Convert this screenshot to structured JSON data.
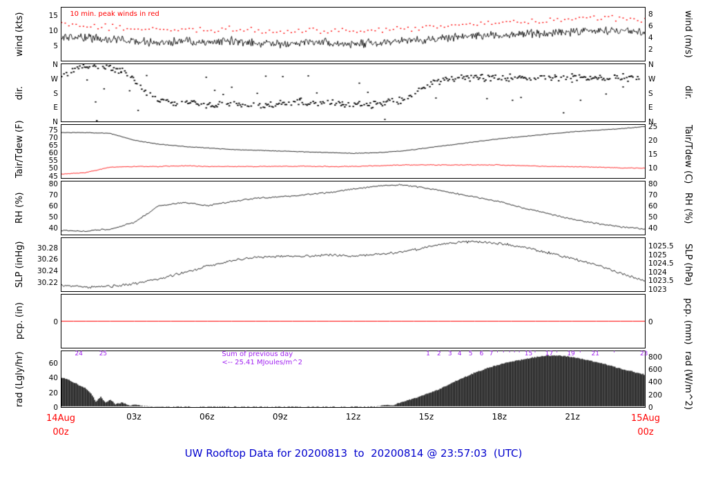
{
  "title": "UW Rooftop Data for 20200813  to  20200814 @ 23:57:03  (UTC)",
  "colors": {
    "title": "#0000cd",
    "date_red": "#ff0000",
    "purple": "#a020f0",
    "black": "#000000",
    "red": "#ff0000"
  },
  "x_axis": {
    "ticks": [
      {
        "h": 3,
        "label": "03z"
      },
      {
        "h": 6,
        "label": "06z"
      },
      {
        "h": 9,
        "label": "09z"
      },
      {
        "h": 12,
        "label": "12z"
      },
      {
        "h": 15,
        "label": "15z"
      },
      {
        "h": 18,
        "label": "18z"
      },
      {
        "h": 21,
        "label": "21z"
      }
    ],
    "start": {
      "line1": "14Aug",
      "line2": "00z"
    },
    "end": {
      "line1": "15Aug",
      "line2": "00z"
    }
  },
  "chart_data": [
    {
      "id": "wind",
      "type": "line",
      "left_label": "wind (kts)",
      "right_label": "wind (m/s)",
      "ylim": [
        0,
        17.5
      ],
      "left_ticks": [
        {
          "v": 5,
          "label": "5"
        },
        {
          "v": 10,
          "label": "10"
        },
        {
          "v": 15,
          "label": "15"
        }
      ],
      "right_ticks": [
        {
          "v": 3.89,
          "label": "2"
        },
        {
          "v": 7.78,
          "label": "4"
        },
        {
          "v": 11.66,
          "label": "6"
        },
        {
          "v": 15.55,
          "label": "8"
        }
      ],
      "annotation_color": "#ff0000",
      "series": [
        {
          "name": "wind-speed",
          "style": "line",
          "color": "#000000",
          "width": 0.9,
          "step_min": 2,
          "noise": 1.6,
          "seed": 11,
          "h": [
            0,
            1,
            2,
            3,
            4,
            5,
            6,
            7,
            8,
            9,
            10,
            11,
            12,
            13,
            14,
            15,
            16,
            17,
            18,
            19,
            20,
            21,
            22,
            23,
            24
          ],
          "v": [
            8,
            7.5,
            7,
            6.5,
            6,
            6.5,
            6,
            6.5,
            6,
            5.5,
            6,
            6,
            5.5,
            6,
            6.5,
            7,
            7.5,
            8,
            8.5,
            9,
            9,
            9.5,
            10,
            10,
            9.5
          ]
        },
        {
          "name": "wind-10min-peak",
          "style": "dots",
          "color": "#ff0000",
          "size": 1.7,
          "step_min": 9,
          "noise": 1.3,
          "seed": 12,
          "h": [
            0,
            1,
            2,
            3,
            4,
            5,
            6,
            7,
            8,
            9,
            10,
            11,
            12,
            13,
            14,
            15,
            16,
            17,
            18,
            19,
            20,
            21,
            22,
            23,
            24
          ],
          "v": [
            12,
            11.5,
            11,
            10.5,
            10,
            10.5,
            10,
            10.5,
            10,
            9.5,
            10,
            10,
            9.5,
            10,
            10.5,
            11,
            11.5,
            12,
            12.5,
            13,
            13,
            13.5,
            14,
            14,
            13.5
          ]
        }
      ],
      "annotations": [
        {
          "text": "10 min. peak winds in red",
          "h": 0.35,
          "v": 15.4,
          "size": 10,
          "color": "#ff0000"
        }
      ]
    },
    {
      "id": "dir",
      "type": "scatter",
      "left_label": "dir.",
      "right_label": "dir.",
      "ylim": [
        0,
        360
      ],
      "left_ticks": [
        {
          "v": 360,
          "label": "N"
        },
        {
          "v": 270,
          "label": "W"
        },
        {
          "v": 180,
          "label": "S"
        },
        {
          "v": 90,
          "label": "E"
        },
        {
          "v": 0,
          "label": "N"
        }
      ],
      "right_ticks": [
        {
          "v": 360,
          "label": "N"
        },
        {
          "v": 270,
          "label": "W"
        },
        {
          "v": 180,
          "label": "S"
        },
        {
          "v": 90,
          "label": "E"
        },
        {
          "v": 0,
          "label": "N"
        }
      ],
      "series": [
        {
          "name": "wind-direction",
          "style": "scatter",
          "color": "#000000",
          "size": 2.2,
          "step_min": 3,
          "noise": 28,
          "dropout": 0.25,
          "wrap": 360,
          "seed": 21,
          "h": [
            0,
            0.5,
            1,
            1.5,
            2,
            2.5,
            3,
            3.5,
            4,
            5,
            6,
            7,
            8,
            9,
            10,
            11,
            12,
            13,
            14,
            14.5,
            15,
            15.5,
            16,
            16.5,
            17,
            18,
            19,
            20,
            21,
            22,
            23,
            24
          ],
          "v": [
            300,
            325,
            340,
            345,
            335,
            310,
            260,
            170,
            125,
            115,
            105,
            110,
            100,
            110,
            120,
            115,
            100,
            110,
            130,
            170,
            220,
            250,
            265,
            270,
            272,
            276,
            280,
            272,
            276,
            270,
            274,
            272
          ]
        },
        {
          "name": "direction-outliers",
          "style": "scatter",
          "color": "#000000",
          "size": 2.0,
          "step_min": 21,
          "noise": 175,
          "dropout": 0.55,
          "wrap": 360,
          "seed": 22,
          "h": [
            0,
            24
          ],
          "v": [
            180,
            180
          ]
        }
      ],
      "annotations": []
    },
    {
      "id": "tair",
      "type": "line",
      "left_label": "Tair/Tdew (F)",
      "right_label": "Tair/Tdew (C)",
      "ylim": [
        43.5,
        78
      ],
      "left_ticks": [
        {
          "v": 45,
          "label": "45"
        },
        {
          "v": 50,
          "label": "50"
        },
        {
          "v": 55,
          "label": "55"
        },
        {
          "v": 60,
          "label": "60"
        },
        {
          "v": 65,
          "label": "65"
        },
        {
          "v": 70,
          "label": "70"
        },
        {
          "v": 75,
          "label": "75"
        }
      ],
      "right_ticks": [
        {
          "v": 50,
          "label": "10"
        },
        {
          "v": 59,
          "label": "15"
        },
        {
          "v": 68,
          "label": "20"
        },
        {
          "v": 77,
          "label": "25"
        }
      ],
      "series": [
        {
          "name": "air-temperature",
          "style": "line",
          "color": "#000000",
          "width": 0.9,
          "step_min": 3,
          "noise": 0.25,
          "seed": 31,
          "h": [
            0,
            1,
            2,
            3,
            4,
            5,
            6,
            7,
            8,
            9,
            10,
            11,
            12,
            13,
            14,
            15,
            16,
            17,
            18,
            19,
            20,
            21,
            22,
            23,
            24
          ],
          "v": [
            73,
            73,
            72.5,
            68,
            65.5,
            64,
            63,
            62,
            61.5,
            61,
            60.5,
            60,
            59.5,
            60,
            61,
            63,
            65,
            67,
            69,
            70.5,
            72,
            73.5,
            74.5,
            75.5,
            77
          ]
        },
        {
          "name": "dew-point",
          "style": "line",
          "color": "#ff0000",
          "width": 0.9,
          "step_min": 3,
          "noise": 0.3,
          "seed": 32,
          "h": [
            0,
            1,
            2,
            3,
            4,
            5,
            6,
            7,
            8,
            9,
            10,
            11,
            12,
            13,
            14,
            15,
            16,
            17,
            18,
            19,
            20,
            21,
            22,
            23,
            24
          ],
          "v": [
            46,
            47,
            50.5,
            51,
            51,
            51.5,
            51,
            51,
            51,
            51,
            51.2,
            51,
            51,
            51.5,
            52,
            52,
            52,
            52,
            52,
            51.5,
            51,
            51,
            50.5,
            50,
            50
          ]
        }
      ],
      "annotations": []
    },
    {
      "id": "rh",
      "type": "line",
      "left_label": "RH (%)",
      "right_label": "RH (%)",
      "ylim": [
        34,
        82
      ],
      "left_ticks": [
        {
          "v": 40,
          "label": "40"
        },
        {
          "v": 50,
          "label": "50"
        },
        {
          "v": 60,
          "label": "60"
        },
        {
          "v": 70,
          "label": "70"
        },
        {
          "v": 80,
          "label": "80"
        }
      ],
      "right_ticks": [
        {
          "v": 40,
          "label": "40"
        },
        {
          "v": 50,
          "label": "50"
        },
        {
          "v": 60,
          "label": "60"
        },
        {
          "v": 70,
          "label": "70"
        },
        {
          "v": 80,
          "label": "80"
        }
      ],
      "series": [
        {
          "name": "relative-humidity",
          "style": "line",
          "color": "#000000",
          "width": 0.9,
          "step_min": 3,
          "noise": 0.8,
          "seed": 41,
          "h": [
            0,
            1,
            2,
            3,
            4,
            5,
            6,
            7,
            8,
            9,
            10,
            11,
            12,
            13,
            14,
            15,
            16,
            17,
            18,
            19,
            20,
            21,
            22,
            23,
            24
          ],
          "v": [
            38,
            37,
            39,
            45,
            60,
            63,
            60,
            64,
            67,
            68,
            70,
            72,
            75,
            78,
            79,
            76,
            72,
            68,
            64,
            58,
            53,
            48,
            44,
            41,
            39
          ]
        }
      ],
      "annotations": []
    },
    {
      "id": "slp",
      "type": "line",
      "left_label": "SLP (inHg)",
      "right_label": "SLP (hPa)",
      "ylim": [
        30.205,
        30.296
      ],
      "left_ticks": [
        {
          "v": 30.22,
          "label": "30.22"
        },
        {
          "v": 30.24,
          "label": "30.24"
        },
        {
          "v": 30.26,
          "label": "30.26"
        },
        {
          "v": 30.28,
          "label": "30.28"
        }
      ],
      "right_ticks": [
        {
          "v": 30.209,
          "label": "1023"
        },
        {
          "v": 30.2237,
          "label": "1023.5"
        },
        {
          "v": 30.2385,
          "label": "1024"
        },
        {
          "v": 30.2533,
          "label": "1024.5"
        },
        {
          "v": 30.268,
          "label": "1025"
        },
        {
          "v": 30.2828,
          "label": "1025.5"
        }
      ],
      "series": [
        {
          "name": "sea-level-pressure",
          "style": "line",
          "color": "#000000",
          "width": 0.9,
          "step_min": 3,
          "noise": 0.0025,
          "seed": 51,
          "h": [
            0,
            1,
            2,
            3,
            4,
            5,
            6,
            7,
            8,
            9,
            10,
            11,
            12,
            13,
            14,
            15,
            16,
            17,
            18,
            19,
            20,
            21,
            22,
            23,
            24
          ],
          "v": [
            30.215,
            30.212,
            30.213,
            30.218,
            30.226,
            30.236,
            30.248,
            30.258,
            30.263,
            30.265,
            30.265,
            30.267,
            30.265,
            30.268,
            30.272,
            30.28,
            30.288,
            30.29,
            30.287,
            30.28,
            30.271,
            30.261,
            30.25,
            30.236,
            30.222
          ]
        }
      ],
      "annotations": []
    },
    {
      "id": "pcp",
      "type": "line",
      "left_label": "pcp. (in)",
      "right_label": "pcp. (mm)",
      "ylim": [
        -1,
        1
      ],
      "left_ticks": [
        {
          "v": 0,
          "label": "0"
        }
      ],
      "right_ticks": [
        {
          "v": 0,
          "label": "0"
        }
      ],
      "series": [
        {
          "name": "precipitation",
          "style": "line",
          "color": "#ff0000",
          "width": 1,
          "step_min": 30,
          "noise": 0,
          "seed": 61,
          "h": [
            0,
            24
          ],
          "v": [
            0,
            0
          ]
        }
      ],
      "annotations": []
    },
    {
      "id": "rad",
      "type": "area",
      "left_label": "rad (Lgly/hr)",
      "right_label": "rad (W/m^2)",
      "ylim": [
        0,
        76
      ],
      "left_ticks": [
        {
          "v": 0,
          "label": "0"
        },
        {
          "v": 20,
          "label": "20"
        },
        {
          "v": 40,
          "label": "40"
        },
        {
          "v": 60,
          "label": "60"
        }
      ],
      "right_ticks": [
        {
          "v": 0,
          "label": "0"
        },
        {
          "v": 17.2,
          "label": "200"
        },
        {
          "v": 34.4,
          "label": "400"
        },
        {
          "v": 51.6,
          "label": "600"
        },
        {
          "v": 68.8,
          "label": "800"
        }
      ],
      "annotation_color": "#a020f0",
      "series": [
        {
          "name": "solar-radiation",
          "style": "area",
          "color": "#000000",
          "step_min": 3,
          "noise": 0.9,
          "clamp0": true,
          "seed": 71,
          "h": [
            0,
            0.3,
            0.7,
            1,
            1.2,
            1.4,
            1.6,
            1.8,
            2,
            2.2,
            2.5,
            2.8,
            3,
            3.5,
            4,
            4.5,
            12.8,
            13,
            13.3,
            13.6,
            13.9,
            14.2,
            14.6,
            15,
            15.5,
            16,
            16.5,
            17,
            17.5,
            18,
            18.5,
            19,
            19.5,
            20,
            20.5,
            21,
            21.5,
            22,
            22.5,
            23,
            23.5,
            24
          ],
          "v": [
            40,
            37,
            30,
            25,
            18,
            8,
            14,
            6,
            10,
            4,
            6,
            2,
            3,
            1,
            0.5,
            0,
            0,
            1,
            3,
            2,
            6,
            9,
            13,
            18,
            24,
            32,
            40,
            47,
            53,
            58,
            62,
            65,
            68,
            70,
            70,
            68,
            65,
            61,
            57,
            52,
            48,
            44
          ]
        }
      ],
      "annotations": [
        {
          "text": "24",
          "h": 0.55,
          "v": 72
        },
        {
          "text": "25",
          "h": 1.55,
          "v": 72
        },
        {
          "text": "Sum of previous day",
          "h": 6.6,
          "v": 72,
          "size": 10
        },
        {
          "text": "<-- 25.41 MJoules/m^2",
          "h": 6.6,
          "v": 61,
          "size": 10
        },
        {
          "text": "1",
          "h": 15.0,
          "v": 72
        },
        {
          "text": "2",
          "h": 15.45,
          "v": 72
        },
        {
          "text": "3",
          "h": 15.9,
          "v": 72
        },
        {
          "text": "4",
          "h": 16.3,
          "v": 72
        },
        {
          "text": "5",
          "h": 16.75,
          "v": 72
        },
        {
          "text": "6",
          "h": 17.2,
          "v": 72
        },
        {
          "text": "7",
          "h": 17.6,
          "v": 72
        },
        {
          "text": "'",
          "h": 17.9,
          "v": 72
        },
        {
          "text": "'",
          "h": 18.15,
          "v": 72
        },
        {
          "text": "'",
          "h": 18.4,
          "v": 72
        },
        {
          "text": "'",
          "h": 18.6,
          "v": 72
        },
        {
          "text": "'",
          "h": 18.8,
          "v": 72
        },
        {
          "text": "15",
          "h": 19.05,
          "v": 72
        },
        {
          "text": "'",
          "h": 19.45,
          "v": 72
        },
        {
          "text": "17",
          "h": 19.9,
          "v": 72
        },
        {
          "text": "'",
          "h": 20.35,
          "v": 72
        },
        {
          "text": "19",
          "h": 20.8,
          "v": 72
        },
        {
          "text": "'",
          "h": 21.3,
          "v": 72
        },
        {
          "text": "21",
          "h": 21.8,
          "v": 72
        },
        {
          "text": "'",
          "h": 22.7,
          "v": 72
        },
        {
          "text": "23",
          "h": 23.8,
          "v": 72
        }
      ]
    }
  ]
}
